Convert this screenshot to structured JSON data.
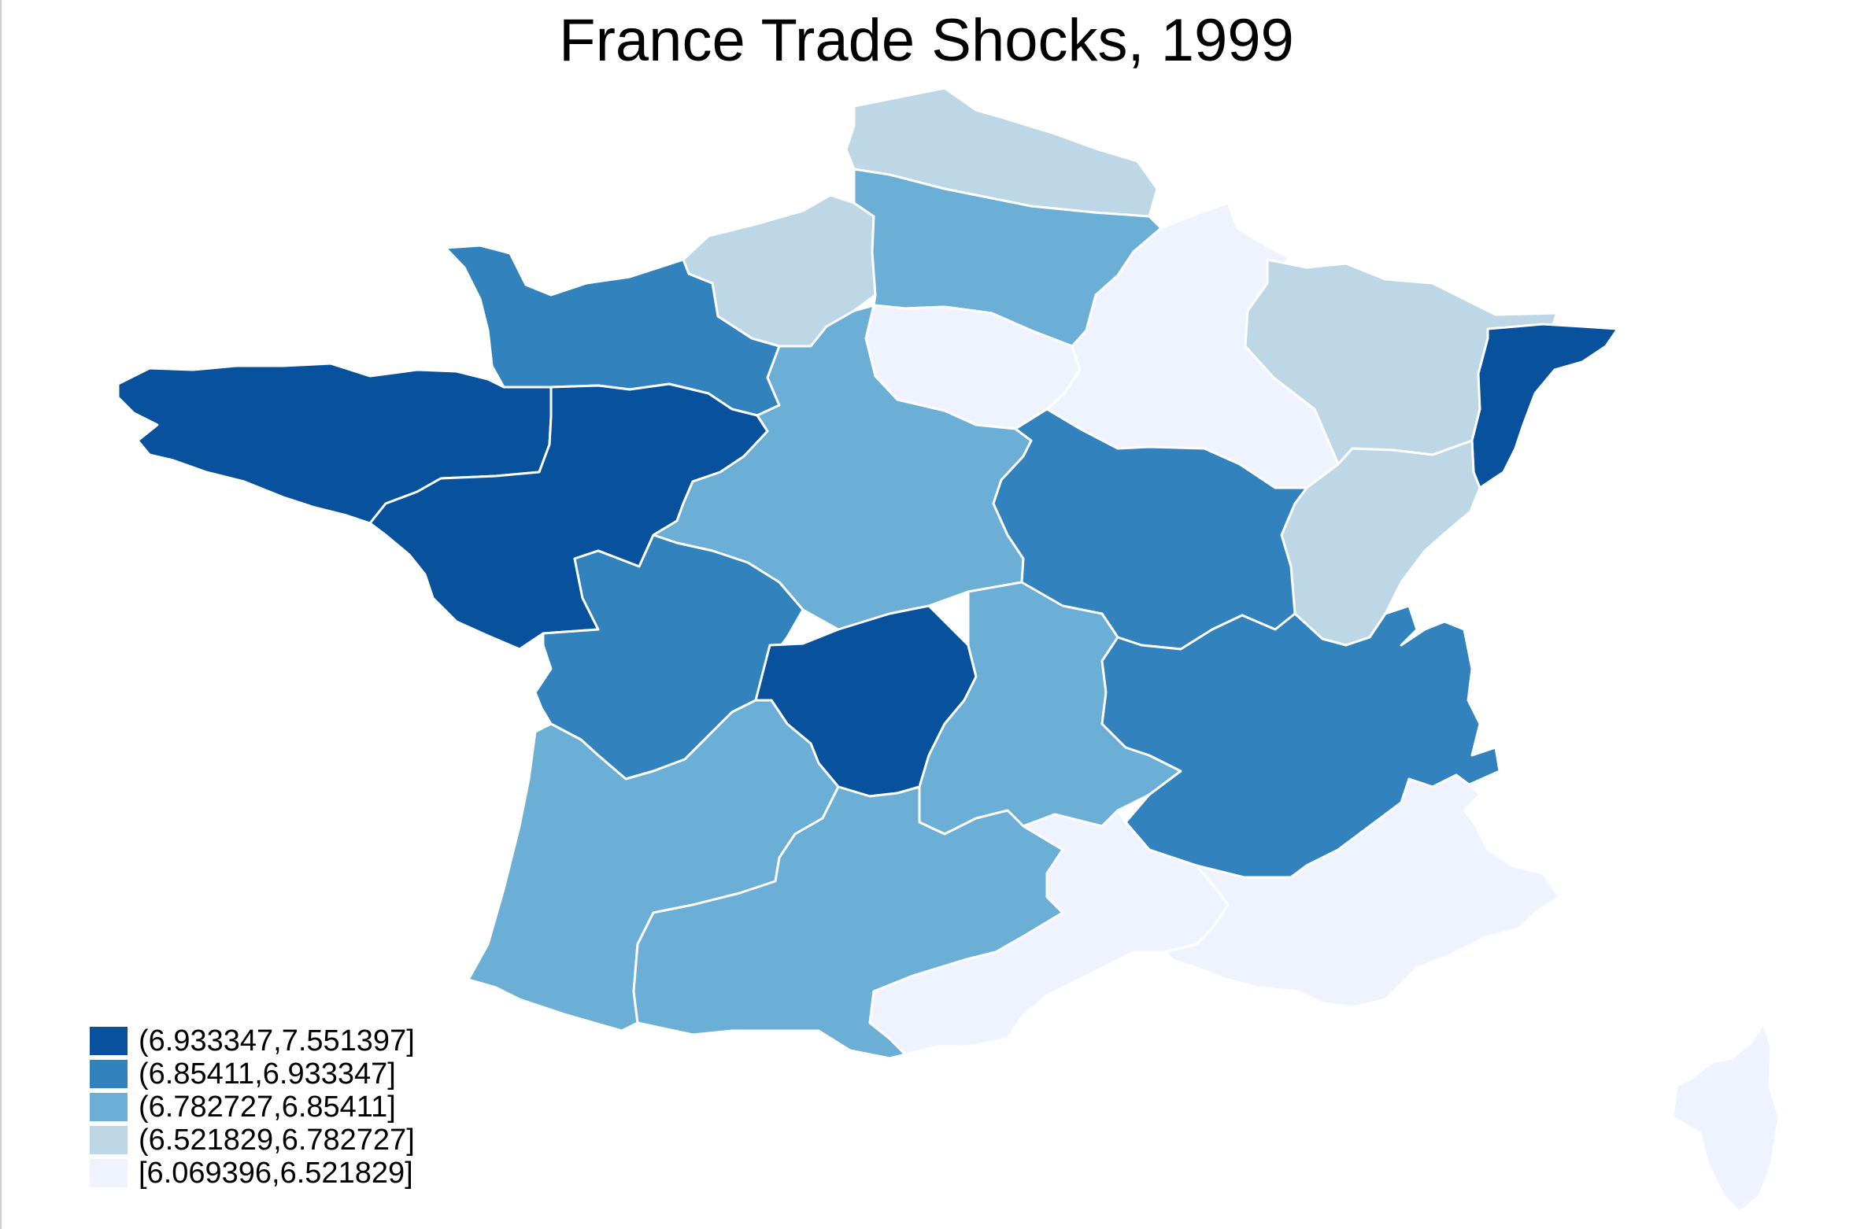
{
  "title": "France Trade Shocks, 1999",
  "colors": {
    "class5": "#08519c",
    "class4": "#3182bd",
    "class3": "#6baed6",
    "class2": "#bdd7e7",
    "class1": "#eff3ff"
  },
  "legend": [
    {
      "label": "(6.933347,7.551397]",
      "color": "#08519c"
    },
    {
      "label": "(6.85411,6.933347]",
      "color": "#3182bd"
    },
    {
      "label": "(6.782727,6.85411]",
      "color": "#6baed6"
    },
    {
      "label": "(6.521829,6.782727]",
      "color": "#bdd7e7"
    },
    {
      "label": "[6.069396,6.521829]",
      "color": "#eff3ff"
    }
  ],
  "regions": [
    {
      "id": "bretagne",
      "class": "class5"
    },
    {
      "id": "pays-de-la-loire",
      "class": "class5"
    },
    {
      "id": "limousin",
      "class": "class5"
    },
    {
      "id": "alsace",
      "class": "class5"
    },
    {
      "id": "basse-normandie",
      "class": "class4"
    },
    {
      "id": "poitou-charentes",
      "class": "class4"
    },
    {
      "id": "bourgogne",
      "class": "class4"
    },
    {
      "id": "rhone-alpes",
      "class": "class4"
    },
    {
      "id": "centre",
      "class": "class3"
    },
    {
      "id": "picardie",
      "class": "class3"
    },
    {
      "id": "aquitaine",
      "class": "class3"
    },
    {
      "id": "midi-pyrenees",
      "class": "class3"
    },
    {
      "id": "auvergne",
      "class": "class3"
    },
    {
      "id": "nord-pas-de-calais",
      "class": "class2"
    },
    {
      "id": "haute-normandie",
      "class": "class2"
    },
    {
      "id": "lorraine",
      "class": "class2"
    },
    {
      "id": "franche-comte",
      "class": "class2"
    },
    {
      "id": "ile-de-france",
      "class": "class1"
    },
    {
      "id": "champagne-ardenne",
      "class": "class1"
    },
    {
      "id": "languedoc-roussillon",
      "class": "class1"
    },
    {
      "id": "provence-alpes-cote-dazur",
      "class": "class1"
    },
    {
      "id": "corse",
      "class": "class1"
    }
  ]
}
